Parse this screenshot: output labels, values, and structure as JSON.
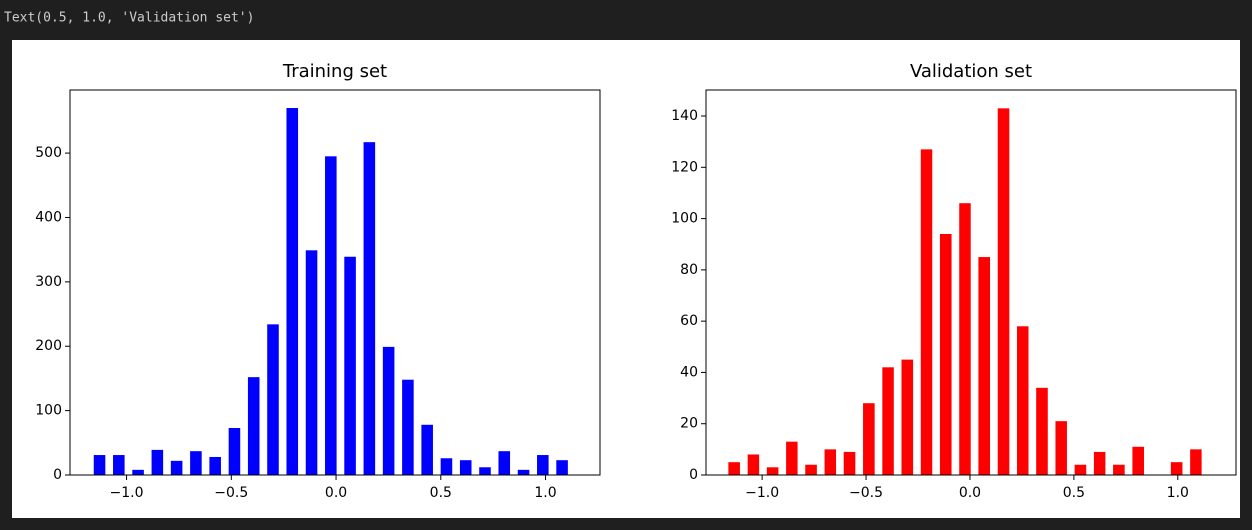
{
  "output_text": "Text(0.5, 1.0, 'Validation set')",
  "chart_data": [
    {
      "type": "histogram",
      "title": "Training set",
      "color": "#0000ff",
      "bins": [
        -1.175,
        -1.083,
        -0.991,
        -0.899,
        -0.807,
        -0.715,
        -0.623,
        -0.531,
        -0.439,
        -0.347,
        -0.255,
        -0.163,
        -0.071,
        0.021,
        0.113,
        0.205,
        0.297,
        0.389,
        0.481,
        0.573,
        0.665,
        0.757,
        0.849,
        0.941,
        1.033,
        1.125
      ],
      "values": [
        31,
        31,
        8,
        39,
        22,
        37,
        28,
        73,
        152,
        234,
        570,
        349,
        495,
        339,
        517,
        199,
        148,
        78,
        26,
        23,
        12,
        37,
        8,
        31,
        23
      ],
      "xlim": [
        -1.27,
        1.26
      ],
      "xticks": [
        {
          "value": -1,
          "label": "−1.0"
        },
        {
          "value": -0.5,
          "label": "−0.5"
        },
        {
          "value": 0,
          "label": "0.0"
        },
        0.5,
        {
          "value": 1,
          "label": "1.0"
        }
      ],
      "ylim": [
        0,
        598
      ],
      "yticks": [
        0,
        100,
        200,
        300,
        400,
        500
      ]
    },
    {
      "type": "histogram",
      "title": "Validation set",
      "color": "#ff0000",
      "bins": [
        -1.181,
        -1.088,
        -0.996,
        -0.903,
        -0.811,
        -0.718,
        -0.626,
        -0.533,
        -0.44,
        -0.348,
        -0.255,
        -0.163,
        -0.07,
        0.022,
        0.115,
        0.208,
        0.3,
        0.393,
        0.485,
        0.578,
        0.67,
        0.763,
        0.856,
        0.948,
        1.041,
        1.133
      ],
      "values": [
        5,
        8,
        3,
        13,
        4,
        10,
        9,
        28,
        42,
        45,
        127,
        94,
        106,
        85,
        143,
        58,
        34,
        21,
        4,
        9,
        4,
        11,
        0,
        5,
        10
      ],
      "xlim": [
        -1.27,
        1.28
      ],
      "xticks": [
        {
          "value": -1,
          "label": "−1.0"
        },
        {
          "value": -0.5,
          "label": "−0.5"
        },
        {
          "value": 0,
          "label": "0.0"
        },
        0.5,
        {
          "value": 1,
          "label": "1.0"
        }
      ],
      "ylim": [
        0,
        150.15
      ],
      "yticks": [
        0,
        20,
        40,
        60,
        80,
        100,
        120,
        140
      ]
    }
  ]
}
